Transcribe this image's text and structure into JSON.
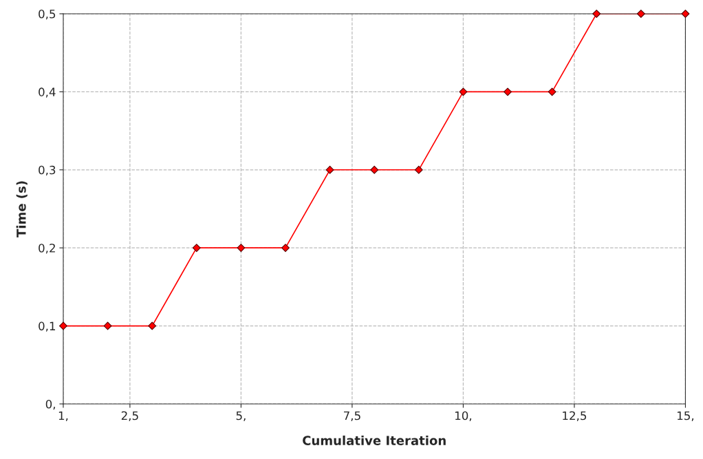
{
  "chart_data": {
    "type": "line",
    "xlabel": "Cumulative Iteration",
    "ylabel": "Time (s)",
    "x": [
      1,
      2,
      3,
      4,
      5,
      6,
      7,
      8,
      9,
      10,
      11,
      12,
      13,
      14,
      15
    ],
    "series": [
      {
        "color": "#ff0000",
        "values": [
          0.1,
          0.1,
          0.1,
          0.2,
          0.2,
          0.2,
          0.3,
          0.3,
          0.3,
          0.4,
          0.4,
          0.4,
          0.5,
          0.5,
          0.5
        ]
      }
    ],
    "xlim": [
      1,
      15
    ],
    "xticks": [
      {
        "value": 1,
        "label": "1,"
      },
      {
        "value": 2.5,
        "label": "2,5"
      },
      {
        "value": 5,
        "label": "5,"
      },
      {
        "value": 7.5,
        "label": "7,5"
      },
      {
        "value": 10,
        "label": "10,"
      },
      {
        "value": 12.5,
        "label": "12,5"
      },
      {
        "value": 15,
        "label": "15,"
      }
    ],
    "ylim": [
      0,
      0.5
    ],
    "yticks": [
      {
        "value": 0,
        "label": "0,"
      },
      {
        "value": 0.1,
        "label": "0,1"
      },
      {
        "value": 0.2,
        "label": "0,2"
      },
      {
        "value": 0.3,
        "label": "0,3"
      },
      {
        "value": 0.4,
        "label": "0,4"
      },
      {
        "value": 0.5,
        "label": "0,5"
      }
    ],
    "grid": true,
    "marker": "diamond",
    "line_style": "solid"
  }
}
